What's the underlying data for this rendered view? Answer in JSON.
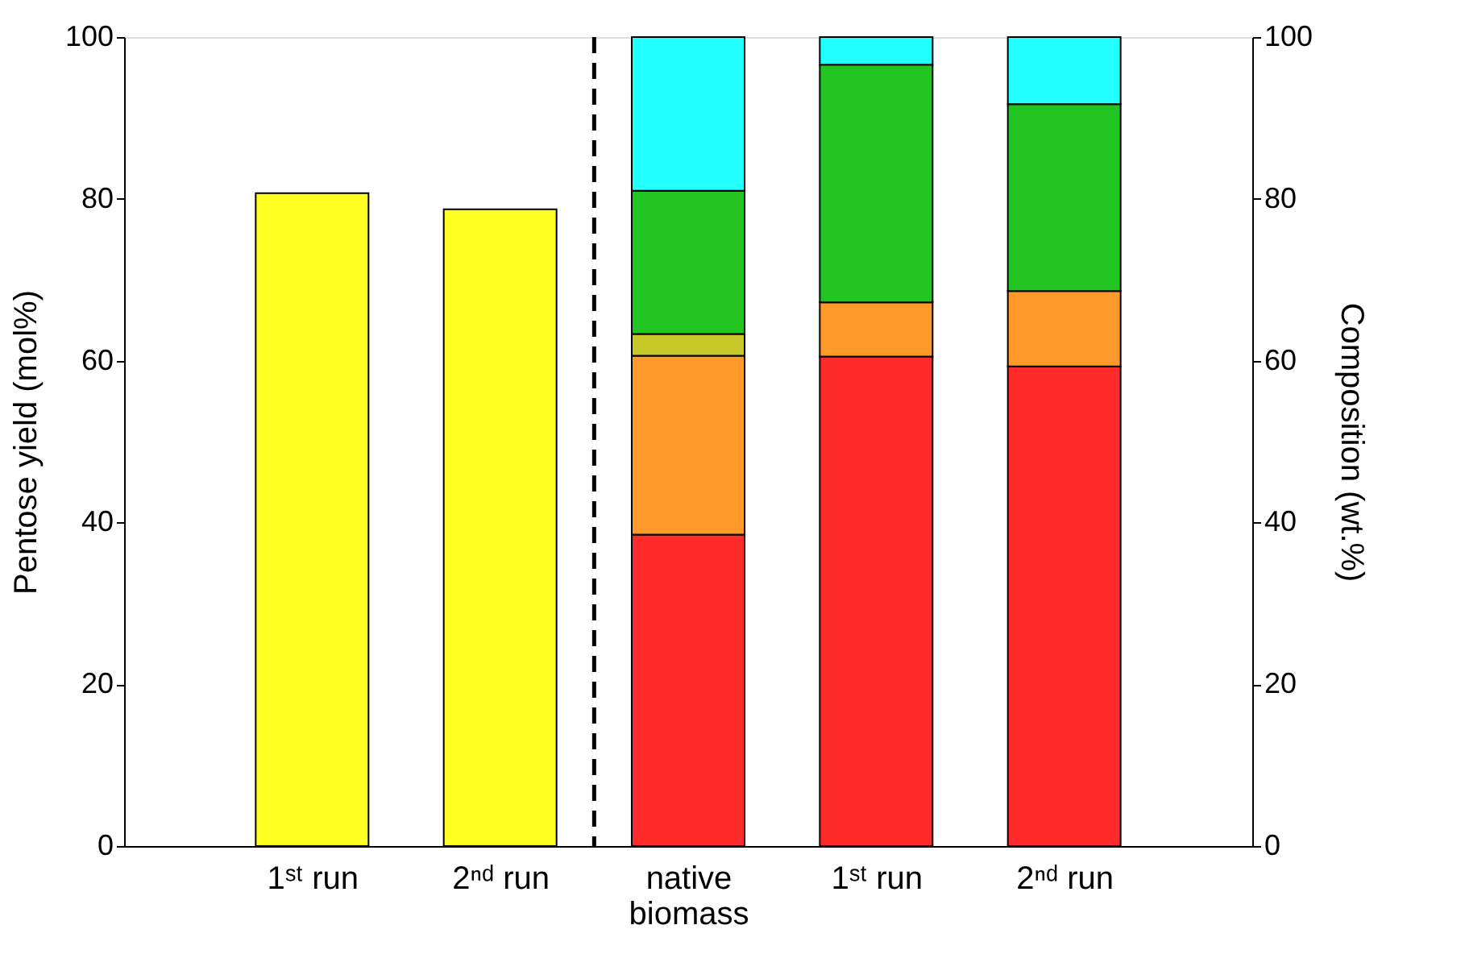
{
  "chart_data": {
    "type": "bar",
    "stacked": true,
    "categories": [
      "1ˢᵗ run",
      "2ⁿᵈ run",
      "native\nbiomass",
      "1ˢᵗ run",
      "2ⁿᵈ run"
    ],
    "ylabel": "Pentose yield (mol%)",
    "y2label": "Composition (wt.%)",
    "ylim": [
      0,
      100
    ],
    "yticks": [
      0,
      20,
      40,
      60,
      80,
      100
    ],
    "y2lim": [
      0,
      100
    ],
    "y2ticks": [
      0,
      20,
      40,
      60,
      80,
      100
    ],
    "series": [
      {
        "color": "#ffff22",
        "values": [
          80.7,
          78.7,
          null,
          null,
          null
        ]
      },
      {
        "color": "#ff2a2a",
        "axis": "y2",
        "values": [
          null,
          null,
          38.5,
          60.5,
          59.3
        ]
      },
      {
        "color": "#ff9a2a",
        "axis": "y2",
        "values": [
          null,
          null,
          22.1,
          6.7,
          9.3
        ]
      },
      {
        "color": "#c8c82a",
        "axis": "y2",
        "values": [
          null,
          null,
          2.7,
          null,
          null
        ]
      },
      {
        "color": "#22c422",
        "axis": "y2",
        "values": [
          null,
          null,
          17.7,
          29.4,
          23.1
        ]
      },
      {
        "color": "#22ffff",
        "axis": "y2",
        "values": [
          null,
          null,
          19.0,
          3.4,
          8.3
        ]
      }
    ],
    "grid": false,
    "legend": false
  }
}
